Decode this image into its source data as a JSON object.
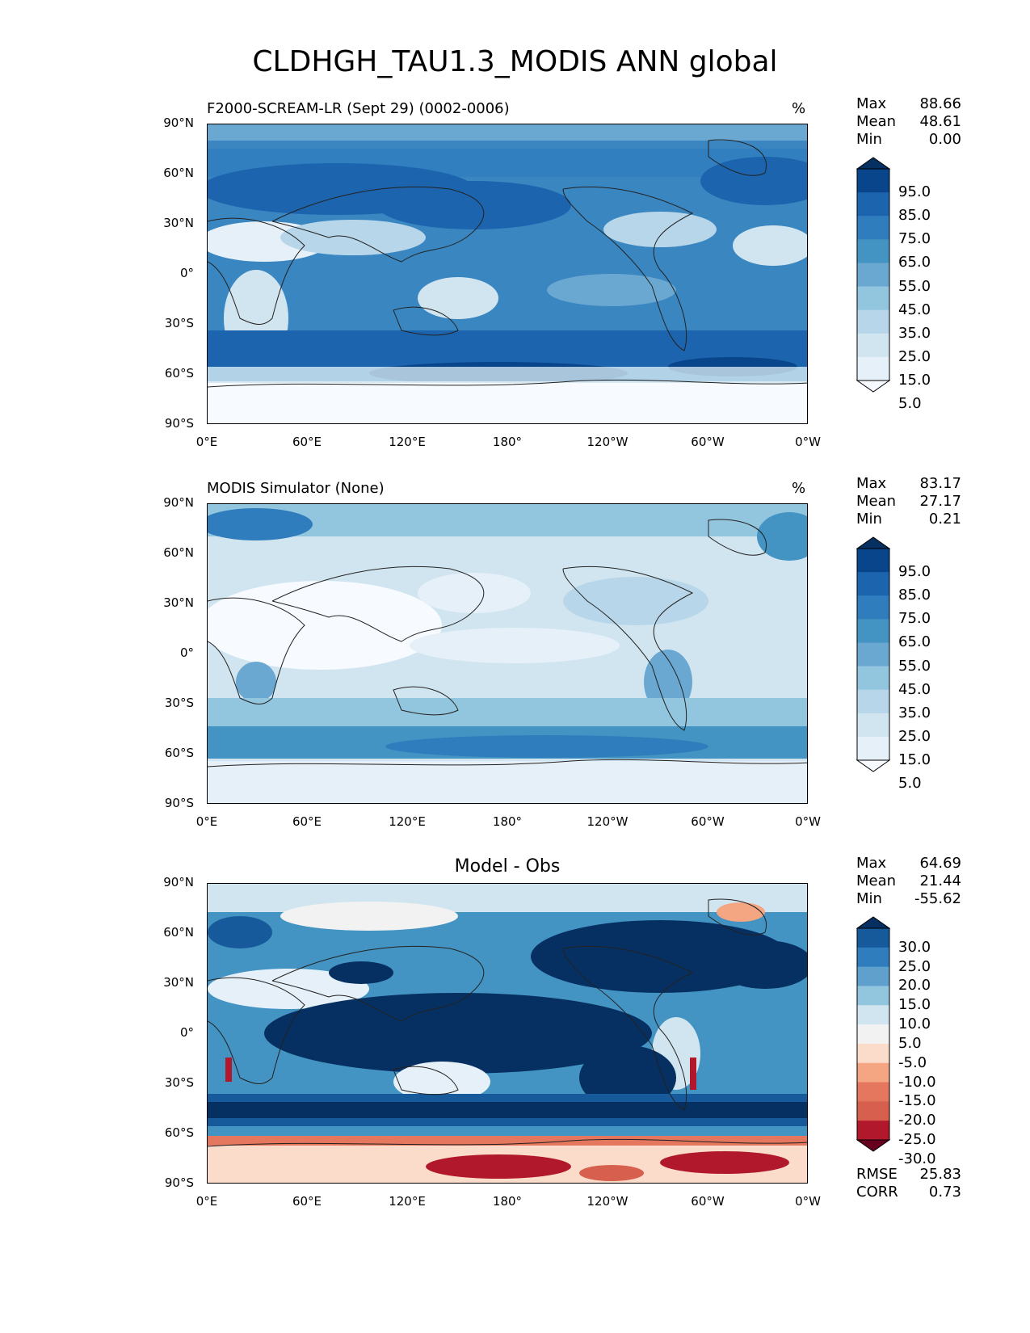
{
  "page_title": "CLDHGH_TAU1.3_MODIS ANN global",
  "lat_ticks": [
    "90°N",
    "60°N",
    "30°N",
    "0°",
    "30°S",
    "60°S",
    "90°S"
  ],
  "lon_ticks": [
    "0°E",
    "60°E",
    "120°E",
    "180°",
    "120°W",
    "60°W",
    "0°W"
  ],
  "panels": [
    {
      "title": "F2000-SCREAM-LR (Sept 29) (0002-0006)",
      "unit": "%",
      "stats": {
        "max_label": "Max",
        "max": "88.66",
        "mean_label": "Mean",
        "mean": "48.61",
        "min_label": "Min",
        "min": "0.00"
      },
      "colorbar": {
        "labels": [
          "95.0",
          "85.0",
          "75.0",
          "65.0",
          "55.0",
          "45.0",
          "35.0",
          "25.0",
          "15.0",
          "5.0"
        ],
        "colors": [
          "#053061",
          "#08458a",
          "#1c64ad",
          "#2f7dbd",
          "#4393c3",
          "#6aa8d2",
          "#92c5de",
          "#b7d6ea",
          "#d1e5f0",
          "#e6f0f8",
          "#f7fbff"
        ]
      }
    },
    {
      "title": "MODIS Simulator (None)",
      "unit": "%",
      "stats": {
        "max_label": "Max",
        "max": "83.17",
        "mean_label": "Mean",
        "mean": "27.17",
        "min_label": "Min",
        "min": "0.21"
      },
      "colorbar": {
        "labels": [
          "95.0",
          "85.0",
          "75.0",
          "65.0",
          "55.0",
          "45.0",
          "35.0",
          "25.0",
          "15.0",
          "5.0"
        ],
        "colors": [
          "#053061",
          "#08458a",
          "#1c64ad",
          "#2f7dbd",
          "#4393c3",
          "#6aa8d2",
          "#92c5de",
          "#b7d6ea",
          "#d1e5f0",
          "#e6f0f8",
          "#f7fbff"
        ]
      }
    },
    {
      "title": "Model - Obs",
      "stats": {
        "max_label": "Max",
        "max": "64.69",
        "mean_label": "Mean",
        "mean": "21.44",
        "min_label": "Min",
        "min": "-55.62"
      },
      "colorbar": {
        "labels": [
          "30.0",
          "25.0",
          "20.0",
          "15.0",
          "10.0",
          "5.0",
          "-5.0",
          "-10.0",
          "-15.0",
          "-20.0",
          "-25.0",
          "-30.0"
        ],
        "colors": [
          "#053061",
          "#175a9c",
          "#2f7dbd",
          "#5fa0cc",
          "#92c5de",
          "#d1e5f0",
          "#f2f2f2",
          "#fbdccb",
          "#f4a582",
          "#e4775d",
          "#d6604d",
          "#b2182b",
          "#67001f"
        ]
      },
      "error_stats": {
        "rmse_label": "RMSE",
        "rmse": "25.83",
        "corr_label": "CORR",
        "corr": "0.73"
      }
    }
  ]
}
